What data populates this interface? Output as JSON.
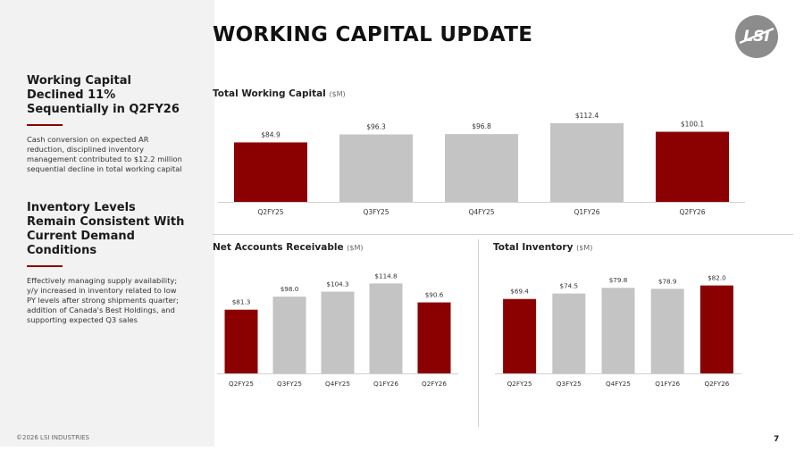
{
  "title": "WORKING CAPITAL UPDATE",
  "sidebar": {
    "block1": {
      "heading": "Working Capital Declined 11% Sequentially in Q2FY26",
      "text": "Cash conversion on expected AR reduction, disciplined inventory management contributed to $12.2 million sequential decline in total working capital"
    },
    "block2": {
      "heading": "Inventory Levels Remain Consistent With Current Demand Conditions",
      "text": "Effectively managing supply availability; y/y increased in inventory related to low PY levels after strong shipments quarter; addition of Canada's Best Holdings, and supporting expected Q3 sales"
    }
  },
  "copyright": "©2026 LSI INDUSTRIES",
  "page_number": "7",
  "logo_text": "LSI",
  "colors": {
    "highlight": "#8b0000",
    "neutral": "#c4c4c4",
    "axis": "#d0d0d0"
  },
  "chart_data": [
    {
      "id": "total-working-capital",
      "type": "bar",
      "title": "Total Working Capital",
      "unit": "($M)",
      "categories": [
        "Q2FY25",
        "Q3FY25",
        "Q4FY25",
        "Q1FY26",
        "Q2FY26"
      ],
      "values": [
        84.9,
        96.3,
        96.8,
        112.4,
        100.1
      ],
      "labels": [
        "$84.9",
        "$96.3",
        "$96.8",
        "$112.4",
        "$100.1"
      ],
      "highlight": [
        true,
        false,
        false,
        false,
        true
      ],
      "ylim": [
        0,
        125
      ],
      "grid": false
    },
    {
      "id": "net-accounts-receivable",
      "type": "bar",
      "title": "Net Accounts Receivable",
      "unit": "($M)",
      "categories": [
        "Q2FY25",
        "Q3FY25",
        "Q4FY25",
        "Q1FY26",
        "Q2FY26"
      ],
      "values": [
        81.3,
        98.0,
        104.3,
        114.8,
        90.6
      ],
      "labels": [
        "$81.3",
        "$98.0",
        "$104.3",
        "$114.8",
        "$90.6"
      ],
      "highlight": [
        true,
        false,
        false,
        false,
        true
      ],
      "ylim": [
        0,
        130
      ],
      "grid": false
    },
    {
      "id": "total-inventory",
      "type": "bar",
      "title": "Total Inventory",
      "unit": "($M)",
      "categories": [
        "Q2FY25",
        "Q3FY25",
        "Q4FY25",
        "Q1FY26",
        "Q2FY26"
      ],
      "values": [
        69.4,
        74.5,
        79.8,
        78.9,
        82.0
      ],
      "labels": [
        "$69.4",
        "$74.5",
        "$79.8",
        "$78.9",
        "$82.0"
      ],
      "highlight": [
        true,
        false,
        false,
        false,
        true
      ],
      "ylim": [
        0,
        95
      ],
      "grid": false
    }
  ]
}
